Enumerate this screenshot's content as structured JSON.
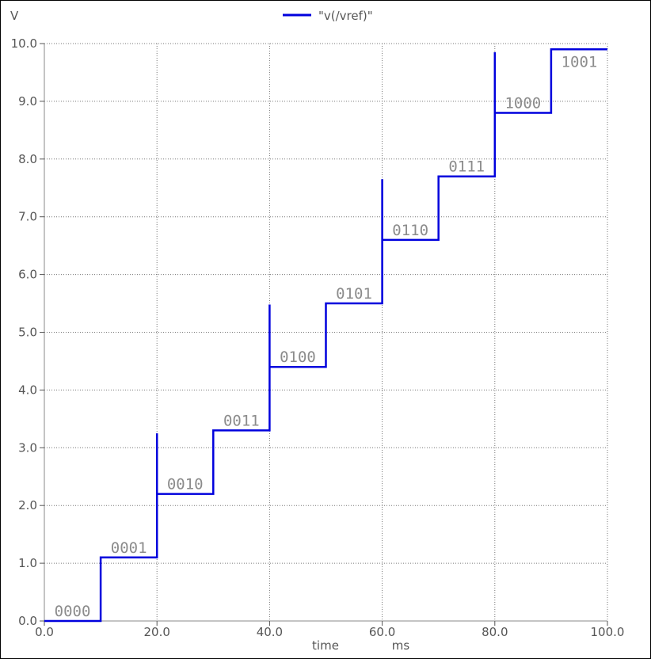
{
  "chart_data": {
    "type": "line",
    "title": "",
    "ylabel": "V",
    "xlabel": "time",
    "xunit": "ms",
    "xlim": [
      0,
      100
    ],
    "ylim": [
      0,
      10
    ],
    "xticks": [
      0,
      20,
      40,
      60,
      80,
      100
    ],
    "xtick_labels": [
      "0.0",
      "20.0",
      "40.0",
      "60.0",
      "80.0",
      "100.0"
    ],
    "yticks": [
      0,
      1,
      2,
      3,
      4,
      5,
      6,
      7,
      8,
      9,
      10
    ],
    "ytick_labels": [
      "0.0",
      "1.0",
      "2.0",
      "3.0",
      "4.0",
      "5.0",
      "6.0",
      "7.0",
      "8.0",
      "9.0",
      "10.0"
    ],
    "grid": true,
    "legend_position": "top-center",
    "series": [
      {
        "name": "\"v(/vref)\"",
        "color": "#0000dd",
        "x": [
          0,
          10,
          10,
          20,
          20,
          20,
          30,
          30,
          40,
          40,
          40,
          50,
          50,
          60,
          60,
          60,
          70,
          70,
          80,
          80,
          80,
          90,
          90,
          100
        ],
        "y": [
          0,
          0,
          1.1,
          1.1,
          3.25,
          2.2,
          2.2,
          3.3,
          3.3,
          5.48,
          4.4,
          4.4,
          5.5,
          5.5,
          7.65,
          6.6,
          6.6,
          7.7,
          7.7,
          9.85,
          8.8,
          8.8,
          9.9,
          9.9
        ]
      }
    ],
    "annotations": [
      {
        "text": "0000",
        "x": 5,
        "y": 0
      },
      {
        "text": "0001",
        "x": 15,
        "y": 1.1
      },
      {
        "text": "0010",
        "x": 25,
        "y": 2.2
      },
      {
        "text": "0011",
        "x": 35,
        "y": 3.3
      },
      {
        "text": "0100",
        "x": 45,
        "y": 4.4
      },
      {
        "text": "0101",
        "x": 55,
        "y": 5.5
      },
      {
        "text": "0110",
        "x": 65,
        "y": 6.6
      },
      {
        "text": "0111",
        "x": 75,
        "y": 7.7
      },
      {
        "text": "1000",
        "x": 85,
        "y": 8.8
      },
      {
        "text": "1001",
        "x": 95,
        "y": 9.9
      }
    ]
  }
}
